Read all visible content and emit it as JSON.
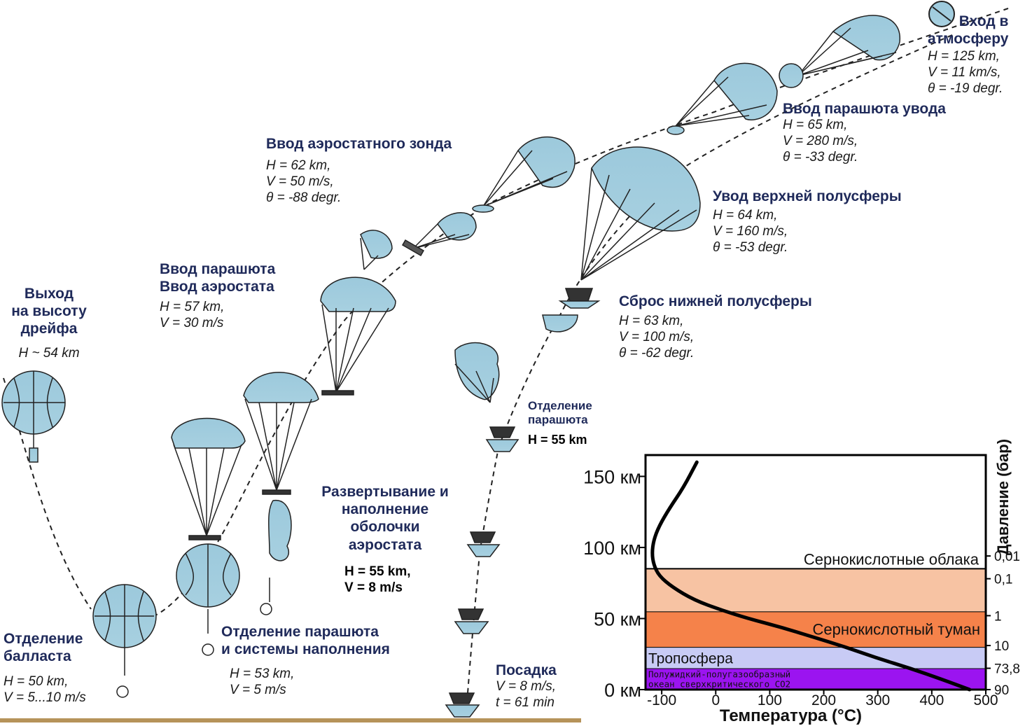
{
  "labels": {
    "entry": {
      "title": [
        "Вход в",
        "атмосферу"
      ],
      "params": [
        "H = 125 km,",
        "V = 11 km/s,",
        "θ = -19 degr."
      ]
    },
    "drogue": {
      "title": [
        "Ввод парашюта увода"
      ],
      "params": [
        "H = 65 km,",
        "V = 280 m/s,",
        "θ = -33 degr."
      ]
    },
    "upper": {
      "title": [
        "Увод верхней полусферы"
      ],
      "params": [
        "H = 64 km,",
        "V = 160 m/s,",
        "θ = -53 degr."
      ]
    },
    "lower": {
      "title": [
        "Сброс нижней полусферы"
      ],
      "params": [
        "H = 63 km,",
        "V = 100 m/s,",
        "θ = -62 degr."
      ]
    },
    "sonde": {
      "title": [
        "Ввод аэростатного зонда"
      ],
      "params": [
        "H = 62 km,",
        "V = 50 m/s,",
        "θ = -88 degr."
      ]
    },
    "aerostat": {
      "title": [
        "Ввод парашюта",
        "Ввод аэростата"
      ],
      "params": [
        "H = 57 km,",
        "V = 30 m/s"
      ]
    },
    "drift": {
      "title": [
        "Выход",
        "на высоту",
        "дрейфа"
      ],
      "params": [
        "H ~ 54 km"
      ]
    },
    "deploy": {
      "title": [
        "Развертывание и",
        "наполнение",
        "оболочки",
        "аэростата"
      ],
      "params": [
        "H = 55 km,",
        "V = 8 m/s"
      ]
    },
    "separation": {
      "title": [
        "Отделение парашюта",
        "и системы наполнения"
      ],
      "params": [
        "H = 53 km,",
        "V = 5 m/s"
      ]
    },
    "ballast": {
      "title": [
        "Отделение",
        "балласта"
      ],
      "params": [
        "H = 50 km,",
        "V = 5...10 m/s"
      ]
    },
    "chute_sep": {
      "title": [
        "Отделение",
        "парашюта"
      ],
      "params": [
        "H = 55 km"
      ]
    },
    "landing": {
      "title": [
        "Посадка"
      ],
      "params": [
        "V = 8 m/s,",
        "t = 61 min"
      ]
    }
  },
  "chart_data": {
    "type": "line",
    "xlabel": "Температура (°C)",
    "ylabel": "Давление (бар)",
    "xlim": [
      -130,
      500
    ],
    "ylim": [
      0,
      165
    ],
    "x_ticks": [
      "-100",
      "0",
      "100",
      "200",
      "300",
      "400",
      "500"
    ],
    "y_ticks": [
      {
        "value": 0,
        "label": "0 км"
      },
      {
        "value": 50,
        "label": "50 км"
      },
      {
        "value": 100,
        "label": "100 км"
      },
      {
        "value": 150,
        "label": "150 км"
      }
    ],
    "pressure_ticks": [
      {
        "value": 90,
        "at": 0
      },
      {
        "value": "73,8",
        "at": 15
      },
      {
        "value": 10,
        "at": 31
      },
      {
        "value": 1,
        "at": 52
      },
      {
        "value": "0,1",
        "at": 78
      },
      {
        "value": "0,01",
        "at": 94
      }
    ],
    "bands": [
      {
        "name": "Полужидкий-полугазообразный океан сверхкритического CO2",
        "from": 0,
        "to": 15,
        "color": "#9b14f0"
      },
      {
        "name": "Тропосфера",
        "from": 15,
        "to": 30,
        "color": "#c8cbf5"
      },
      {
        "name": "Сернокислотный туман",
        "from": 30,
        "to": 55,
        "color": "#f5824a"
      },
      {
        "name": "",
        "from": 55,
        "to": 85,
        "color": "#f7c3a3"
      }
    ],
    "cloud_label": "Сернокислотные облака",
    "band_labels": [
      "Полужидкий-полугазообразный",
      "океан сверхкритического CO2"
    ],
    "series": [
      {
        "x": [
          470,
          420,
          360,
          300,
          240,
          180,
          120,
          60,
          10,
          -40,
          -80,
          -105,
          -115,
          -118,
          -115,
          -105,
          -85,
          -60,
          -35
        ],
        "y": [
          0,
          7,
          15,
          22,
          30,
          37,
          44,
          50,
          56,
          63,
          72,
          80,
          88,
          96,
          105,
          115,
          128,
          142,
          160
        ]
      }
    ]
  }
}
